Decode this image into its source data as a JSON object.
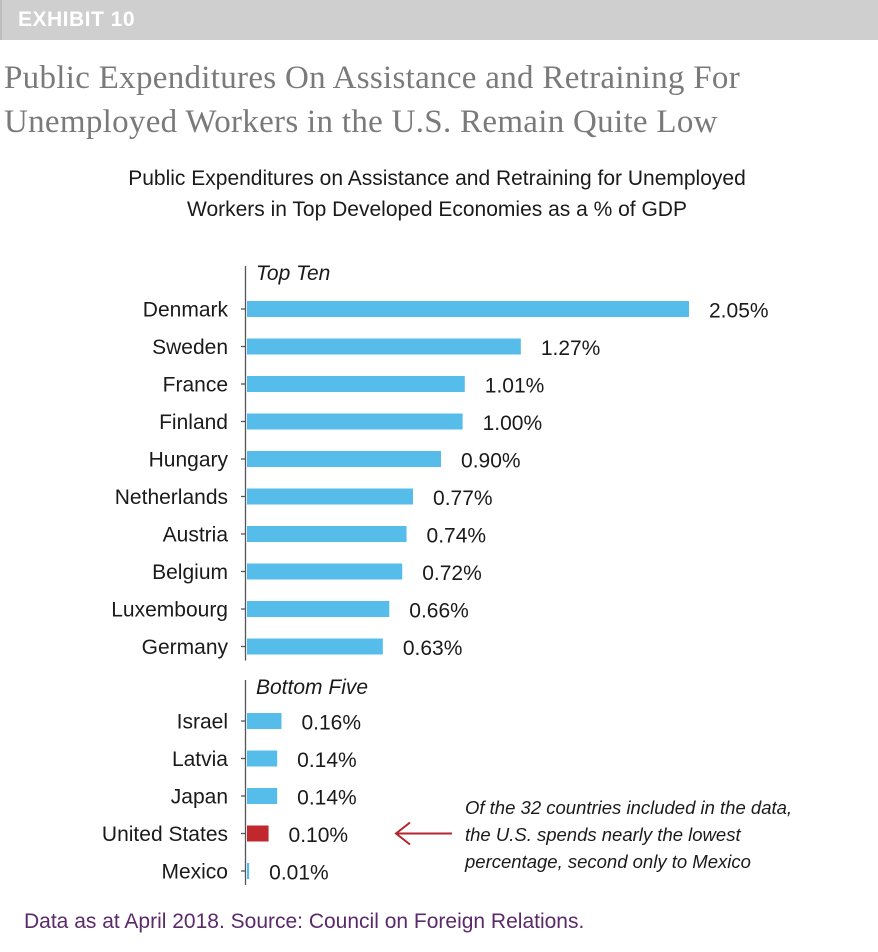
{
  "exhibit": {
    "label": "EXHIBIT 10"
  },
  "headline": {
    "line1": "Public Expenditures On Assistance and Retraining For",
    "line2": "Unemployed Workers in the U.S. Remain Quite Low"
  },
  "footer": {
    "text": "Data as at April 2018. Source: Council on Foreign Relations."
  },
  "colors": {
    "bar": "#56bdea",
    "highlight": "#c0282d",
    "annotation_arrow": "#b3262b",
    "footer_text": "#5a2a6b"
  },
  "chart_data": {
    "type": "bar",
    "orientation": "horizontal",
    "title": "Public Expenditures on Assistance and Retraining for Unemployed",
    "subtitle": "Workers in Top Developed Economies as a % of GDP",
    "groups": [
      {
        "label": "Top Ten",
        "categories": [
          "Denmark",
          "Sweden",
          "France",
          "Finland",
          "Hungary",
          "Netherlands",
          "Austria",
          "Belgium",
          "Luxembourg",
          "Germany"
        ],
        "values": [
          2.05,
          1.27,
          1.01,
          1.0,
          0.9,
          0.77,
          0.74,
          0.72,
          0.66,
          0.63
        ],
        "value_labels": [
          "2.05%",
          "1.27%",
          "1.01%",
          "1.00%",
          "0.90%",
          "0.77%",
          "0.74%",
          "0.72%",
          "0.66%",
          "0.63%"
        ]
      },
      {
        "label": "Bottom Five",
        "categories": [
          "Israel",
          "Latvia",
          "Japan",
          "United States",
          "Mexico"
        ],
        "values": [
          0.16,
          0.14,
          0.14,
          0.1,
          0.01
        ],
        "value_labels": [
          "0.16%",
          "0.14%",
          "0.14%",
          "0.10%",
          "0.01%"
        ]
      }
    ],
    "highlight_category": "United States",
    "xlim": [
      0,
      2.05
    ],
    "grid": false,
    "legend": "none",
    "annotation": {
      "target": "United States",
      "lines": [
        "Of the 32 countries included in the data,",
        "the U.S. spends nearly the lowest",
        "percentage, second only to Mexico"
      ]
    }
  }
}
